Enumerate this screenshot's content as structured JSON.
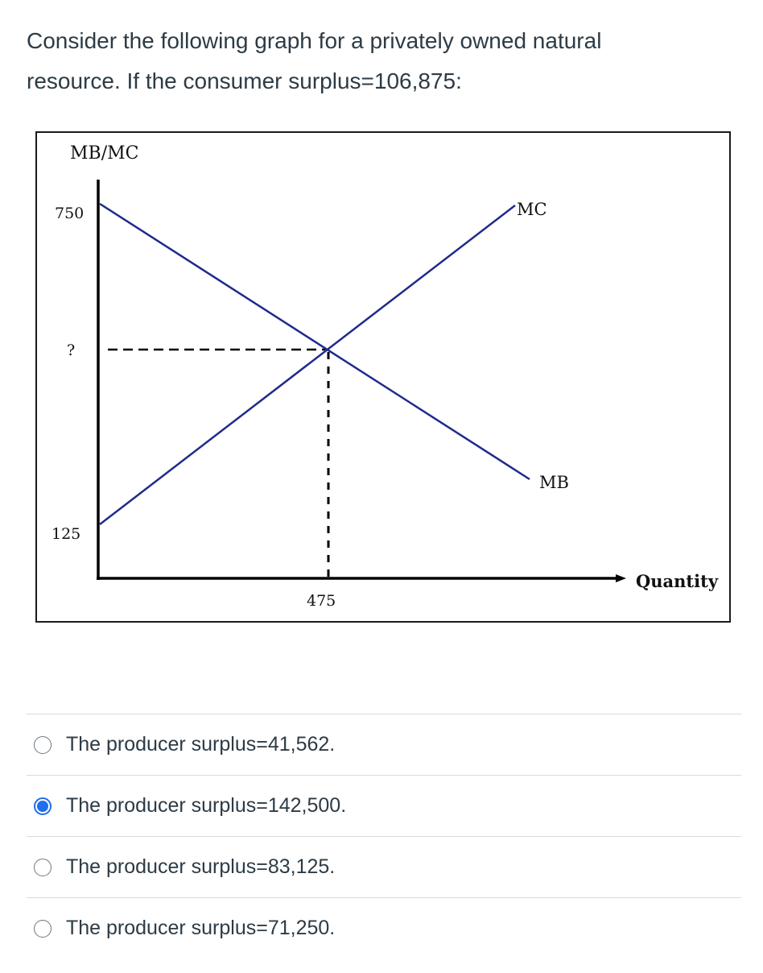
{
  "question": {
    "line1": "Consider the following graph for a privately owned natural",
    "line2": "resource. If the consumer surplus=106,875:"
  },
  "chart_data": {
    "type": "line",
    "y_axis_title": "MB/MC",
    "x_axis_title": "Quantity",
    "y_tick_labels": [
      "750",
      "?",
      "125"
    ],
    "x_tick_labels": [
      "475"
    ],
    "series": [
      {
        "name": "MC",
        "points": [
          [
            0,
            125
          ],
          [
            475,
            null
          ]
        ]
      },
      {
        "name": "MB",
        "points": [
          [
            0,
            750
          ],
          [
            475,
            null
          ]
        ]
      }
    ],
    "equilibrium": {
      "quantity": "475",
      "price": "?"
    },
    "colors": {
      "curves": "#1f2a8c",
      "axes": "#000000"
    }
  },
  "options": [
    {
      "label": "The producer surplus=41,562.",
      "selected": false
    },
    {
      "label": "The producer surplus=142,500.",
      "selected": true
    },
    {
      "label": "The producer surplus=83,125.",
      "selected": false
    },
    {
      "label": "The producer surplus=71,250.",
      "selected": false
    }
  ]
}
